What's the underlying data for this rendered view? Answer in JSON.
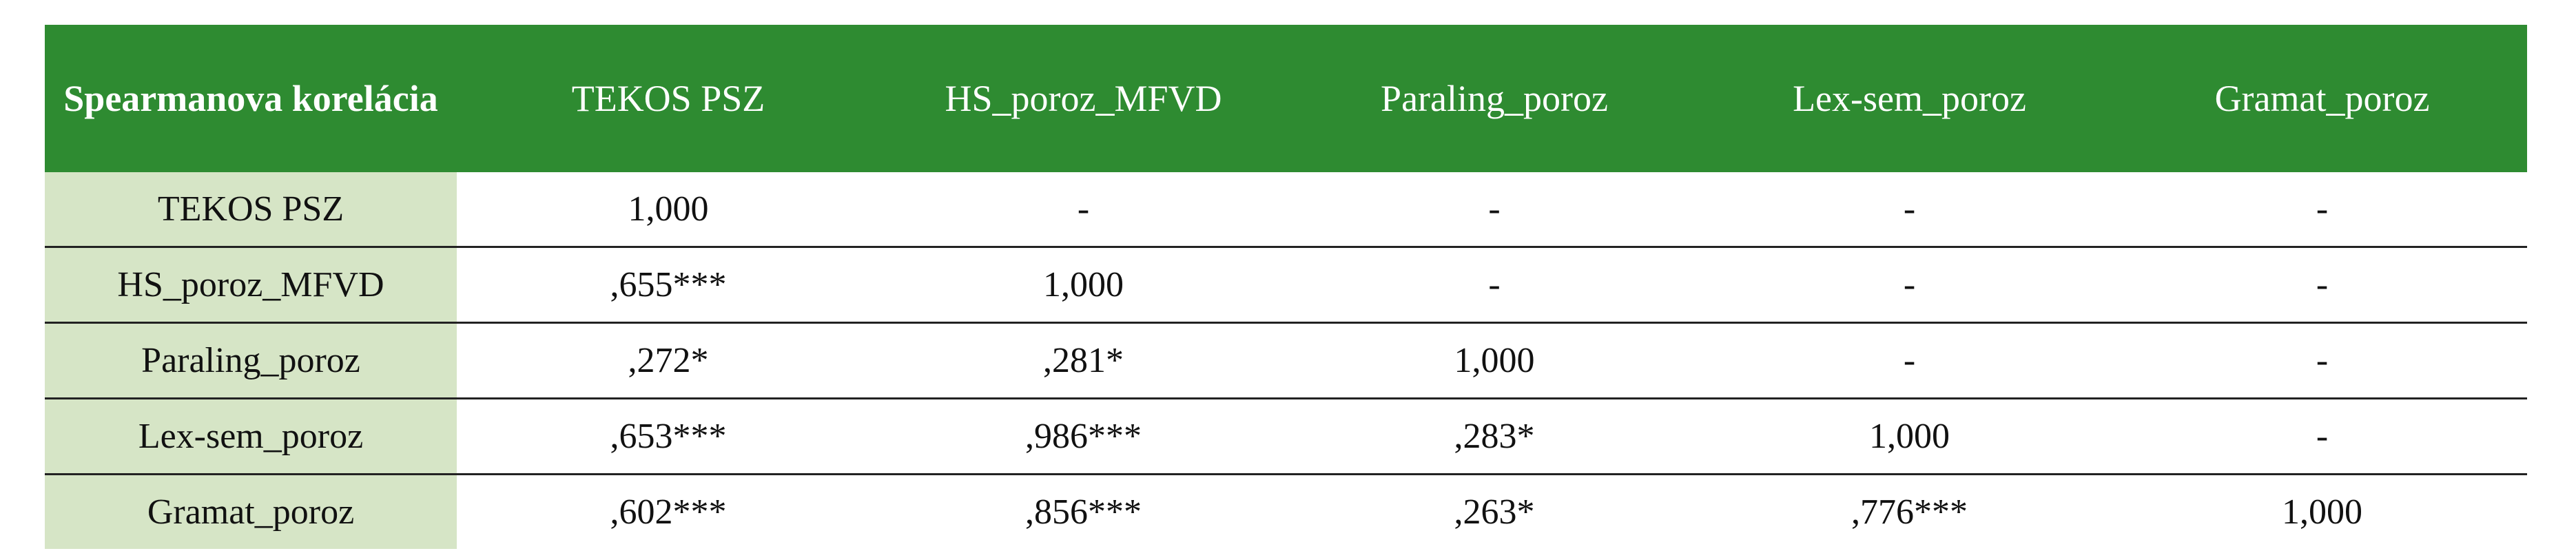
{
  "table": {
    "header": [
      "Spearmanova korelácia",
      "TEKOS PSZ",
      "HS_poroz_MFVD",
      "Paraling_poroz",
      "Lex-sem_poroz",
      "Gramat_poroz"
    ],
    "rows": [
      [
        "TEKOS PSZ",
        "1,000",
        "-",
        "-",
        "-",
        "-"
      ],
      [
        "HS_poroz_MFVD",
        ",655***",
        "1,000",
        "-",
        "-",
        "-"
      ],
      [
        "Paraling_poroz",
        ",272*",
        ",281*",
        "1,000",
        "-",
        "-"
      ],
      [
        "Lex-sem_poroz",
        ",653***",
        ",986***",
        ",283*",
        "1,000",
        "-"
      ],
      [
        "Gramat_poroz",
        ",602***",
        ",856***",
        ",263*",
        ",776***",
        "1,000"
      ]
    ]
  }
}
